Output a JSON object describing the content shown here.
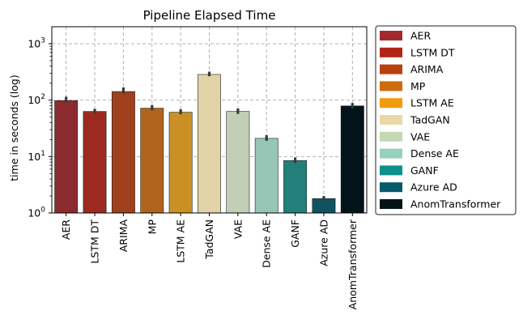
{
  "chart_data": {
    "type": "bar",
    "title": "Pipeline Elapsed Time",
    "xlabel": "",
    "ylabel": "time in seconds (log)",
    "y_scale": "log",
    "ylim": [
      1,
      2000
    ],
    "y_ticks": [
      1,
      10,
      100,
      1000
    ],
    "y_tick_labels": [
      {
        "base": "10",
        "exp": "0"
      },
      {
        "base": "10",
        "exp": "1"
      },
      {
        "base": "10",
        "exp": "2"
      },
      {
        "base": "10",
        "exp": "3"
      }
    ],
    "grid": true,
    "legend_position": "outside-right",
    "categories": [
      "AER",
      "LSTM DT",
      "ARIMA",
      "MP",
      "LSTM AE",
      "TadGAN",
      "VAE",
      "Dense AE",
      "GANF",
      "Azure AD",
      "AnomTransformer"
    ],
    "values": [
      98,
      63,
      142,
      72,
      61,
      285,
      63,
      21,
      8.5,
      1.8,
      79
    ],
    "error_low": [
      90,
      58,
      130,
      66,
      56,
      265,
      57,
      19,
      7.7,
      1.65,
      72
    ],
    "error_high": [
      115,
      70,
      168,
      82,
      69,
      320,
      71,
      24,
      9.6,
      2.0,
      89
    ],
    "colors": [
      "#8B2B2F",
      "#9C2A20",
      "#A0401D",
      "#B0641D",
      "#CB9024",
      "#E1D2A8",
      "#C2CEB5",
      "#95C6B6",
      "#237F7A",
      "#0E535D",
      "#021419"
    ],
    "legend_colors": [
      "#A12A2F",
      "#B32317",
      "#B8400F",
      "#CC6C0D",
      "#F09C0D",
      "#E9D7A7",
      "#C3D8B5",
      "#97D0BC",
      "#0E918D",
      "#075A6A",
      "#021419"
    ]
  }
}
